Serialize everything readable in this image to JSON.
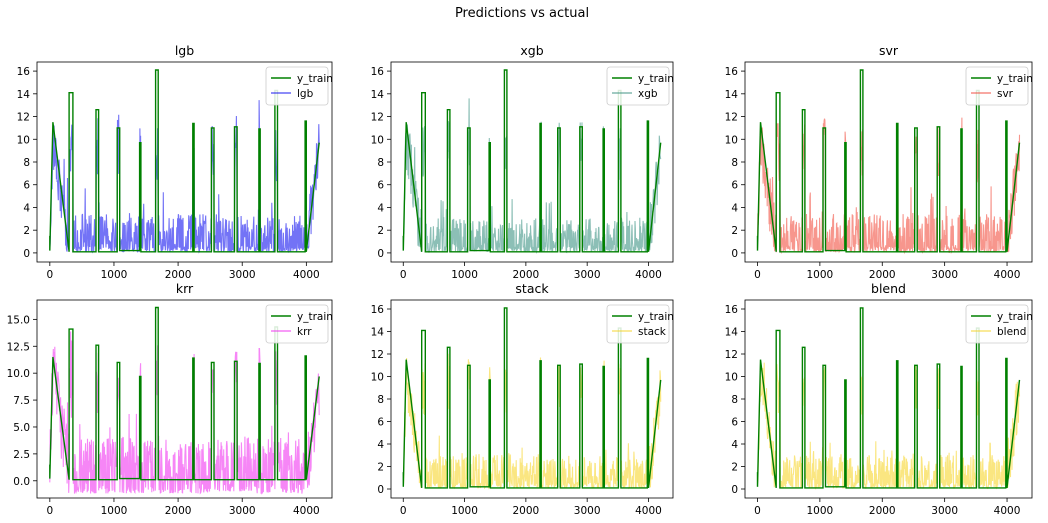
{
  "figure": {
    "title": "Predictions vs actual"
  },
  "colors": {
    "y_train": "#008000",
    "lgb": "#0000ee",
    "xgb": "#2e8b7a",
    "svr": "#f04030",
    "krr": "#ee22ee",
    "stack": "#f5d21a",
    "blend": "#f5d21a"
  },
  "chart_data": [
    {
      "type": "line",
      "title": "lgb",
      "xlim": [
        -200,
        4400
      ],
      "ylim": [
        -0.8,
        16.8
      ],
      "xticks": [
        0,
        1000,
        2000,
        3000,
        4000
      ],
      "xtick_labels": [
        "0",
        "1000",
        "2000",
        "3000",
        "4000"
      ],
      "yticks": [
        0,
        2,
        4,
        6,
        8,
        10,
        12,
        14,
        16
      ],
      "ytick_labels": [
        "0",
        "2",
        "4",
        "6",
        "8",
        "10",
        "12",
        "14",
        "16"
      ],
      "legend": "upper right",
      "series": [
        {
          "name": "y_train",
          "color": "#008000",
          "role": "actual",
          "x": [
            0,
            0,
            48,
            48,
            300,
            300,
            360,
            360,
            720,
            720,
            760,
            760,
            1050,
            1050,
            1090,
            1090,
            1400,
            1400,
            1420,
            1420,
            1650,
            1650,
            1690,
            1690,
            2230,
            2230,
            2250,
            2250,
            2520,
            2520,
            2560,
            2560,
            2880,
            2880,
            2920,
            2920,
            3260,
            3260,
            3280,
            3280,
            3510,
            3510,
            3550,
            3550,
            3980,
            3980,
            4000,
            4000,
            4200
          ],
          "y": [
            1.5,
            0.2,
            11.5,
            11.5,
            0.1,
            14.1,
            14.1,
            0.1,
            0.1,
            12.6,
            12.6,
            0.1,
            0.1,
            11.0,
            11.0,
            0.2,
            0.2,
            9.7,
            9.7,
            0.1,
            0.1,
            16.1,
            16.1,
            0.1,
            0.1,
            11.4,
            11.4,
            0.1,
            0.1,
            11.0,
            11.0,
            0.1,
            0.1,
            11.1,
            11.1,
            0.1,
            0.1,
            10.9,
            10.9,
            0.1,
            0.1,
            14.3,
            14.3,
            0.1,
            0.1,
            11.6,
            11.6,
            0.1,
            9.7
          ]
        },
        {
          "name": "lgb",
          "color": "#0000ee",
          "role": "prediction",
          "amp": 1.0
        }
      ]
    },
    {
      "type": "line",
      "title": "xgb",
      "xlim": [
        -200,
        4400
      ],
      "ylim": [
        -0.8,
        16.8
      ],
      "xticks": [
        0,
        1000,
        2000,
        3000,
        4000
      ],
      "xtick_labels": [
        "0",
        "1000",
        "2000",
        "3000",
        "4000"
      ],
      "yticks": [
        0,
        2,
        4,
        6,
        8,
        10,
        12,
        14,
        16
      ],
      "ytick_labels": [
        "0",
        "2",
        "4",
        "6",
        "8",
        "10",
        "12",
        "14",
        "16"
      ],
      "legend": "upper right",
      "series": [
        {
          "name": "y_train",
          "color": "#008000",
          "role": "actual"
        },
        {
          "name": "xgb",
          "color": "#2e8b7a",
          "role": "prediction",
          "amp": 0.9
        }
      ]
    },
    {
      "type": "line",
      "title": "svr",
      "xlim": [
        -200,
        4400
      ],
      "ylim": [
        -0.8,
        16.8
      ],
      "xticks": [
        0,
        1000,
        2000,
        3000,
        4000
      ],
      "xtick_labels": [
        "0",
        "1000",
        "2000",
        "3000",
        "4000"
      ],
      "yticks": [
        0,
        2,
        4,
        6,
        8,
        10,
        12,
        14,
        16
      ],
      "ytick_labels": [
        "0",
        "2",
        "4",
        "6",
        "8",
        "10",
        "12",
        "14",
        "16"
      ],
      "legend": "upper right",
      "series": [
        {
          "name": "y_train",
          "color": "#008000",
          "role": "actual"
        },
        {
          "name": "svr",
          "color": "#f04030",
          "role": "prediction",
          "amp": 1.0
        }
      ]
    },
    {
      "type": "line",
      "title": "krr",
      "xlim": [
        -200,
        4400
      ],
      "ylim": [
        -1.6,
        16.8
      ],
      "xticks": [
        0,
        1000,
        2000,
        3000,
        4000
      ],
      "xtick_labels": [
        "0",
        "1000",
        "2000",
        "3000",
        "4000"
      ],
      "yticks": [
        0,
        2.5,
        5,
        7.5,
        10,
        12.5,
        15
      ],
      "ytick_labels": [
        "0.0",
        "2.5",
        "5.0",
        "7.5",
        "10.0",
        "12.5",
        "15.0"
      ],
      "legend": "upper right",
      "series": [
        {
          "name": "y_train",
          "color": "#008000",
          "role": "actual"
        },
        {
          "name": "krr",
          "color": "#ee22ee",
          "role": "prediction",
          "amp": 1.2
        }
      ]
    },
    {
      "type": "line",
      "title": "stack",
      "xlim": [
        -200,
        4400
      ],
      "ylim": [
        -0.8,
        16.8
      ],
      "xticks": [
        0,
        1000,
        2000,
        3000,
        4000
      ],
      "xtick_labels": [
        "0",
        "1000",
        "2000",
        "3000",
        "4000"
      ],
      "yticks": [
        0,
        2,
        4,
        6,
        8,
        10,
        12,
        14,
        16
      ],
      "ytick_labels": [
        "0",
        "2",
        "4",
        "6",
        "8",
        "10",
        "12",
        "14",
        "16"
      ],
      "legend": "upper right",
      "series": [
        {
          "name": "y_train",
          "color": "#008000",
          "role": "actual"
        },
        {
          "name": "stack",
          "color": "#f5d21a",
          "role": "prediction",
          "amp": 0.85
        }
      ]
    },
    {
      "type": "line",
      "title": "blend",
      "xlim": [
        -200,
        4400
      ],
      "ylim": [
        -0.8,
        16.8
      ],
      "xticks": [
        0,
        1000,
        2000,
        3000,
        4000
      ],
      "xtick_labels": [
        "0",
        "1000",
        "2000",
        "3000",
        "4000"
      ],
      "yticks": [
        0,
        2,
        4,
        6,
        8,
        10,
        12,
        14,
        16
      ],
      "ytick_labels": [
        "0",
        "2",
        "4",
        "6",
        "8",
        "10",
        "12",
        "14",
        "16"
      ],
      "legend": "upper right",
      "series": [
        {
          "name": "y_train",
          "color": "#008000",
          "role": "actual"
        },
        {
          "name": "blend",
          "color": "#f5d21a",
          "role": "prediction",
          "amp": 0.85
        }
      ]
    }
  ]
}
